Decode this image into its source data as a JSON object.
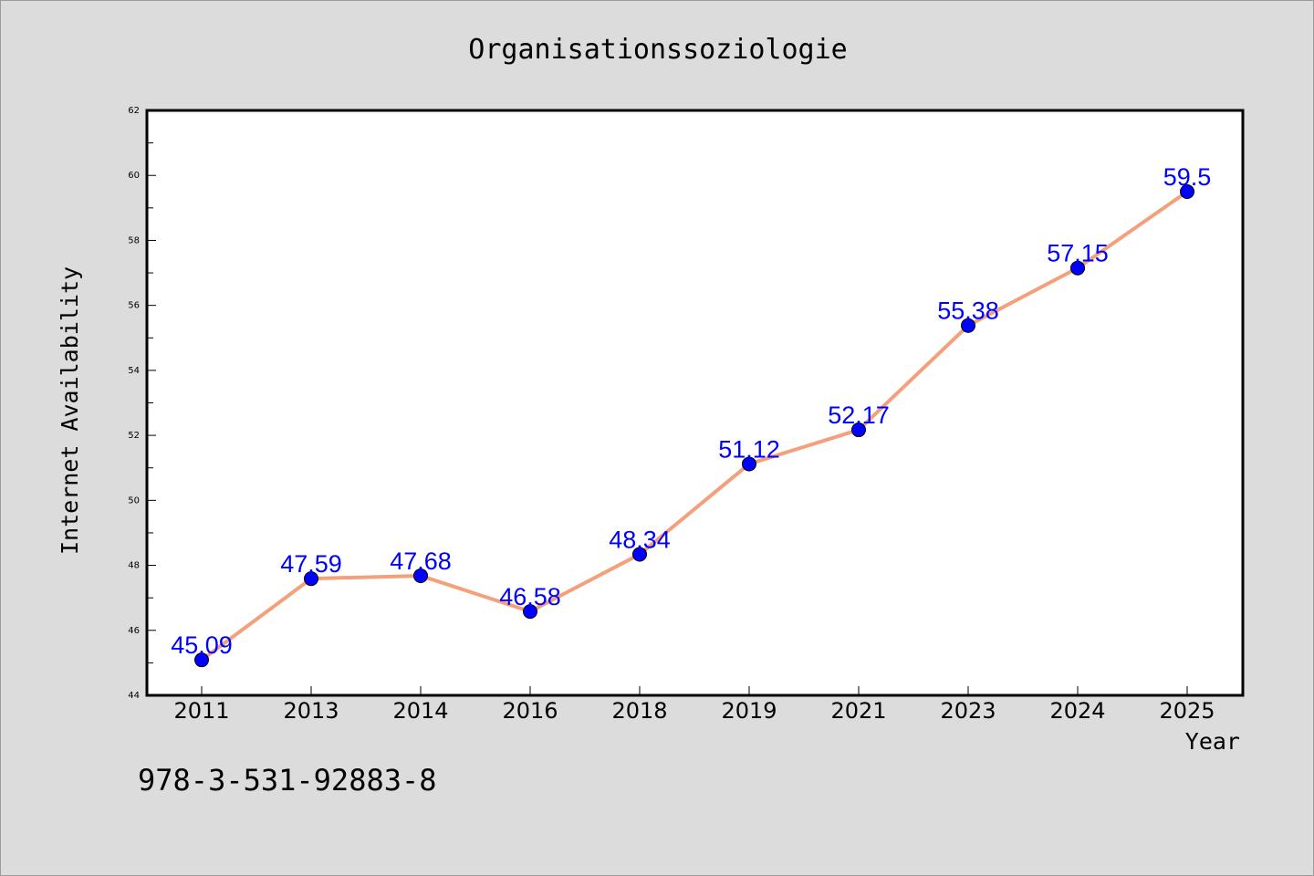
{
  "chart_data": {
    "type": "line",
    "title": "Organisationssoziologie",
    "xlabel": "Year",
    "ylabel": "Internet Availability",
    "categories": [
      "2011",
      "2013",
      "2014",
      "2016",
      "2018",
      "2019",
      "2021",
      "2023",
      "2024",
      "2025"
    ],
    "series": [
      {
        "values": [
          45.09,
          47.59,
          47.68,
          46.58,
          48.34,
          51.12,
          52.17,
          55.38,
          57.15,
          59.5
        ],
        "labels": [
          "45.09",
          "47.59",
          "47.68",
          "46.58",
          "48.34",
          "51.12",
          "52.17",
          "55.38",
          "57.15",
          "59.5"
        ],
        "line_color": "#f4a07a",
        "marker_color": "#0000ff"
      }
    ],
    "ylim": [
      44,
      62
    ],
    "yticks": [
      "44",
      "46",
      "48",
      "50",
      "52",
      "54",
      "56",
      "58",
      "60",
      "62"
    ],
    "grid": false,
    "legend": "none"
  },
  "footer_text": "978-3-531-92883-8",
  "colors": {
    "background": "#dcdcdc",
    "plot_area": "#ffffff",
    "line": "#f4a07a",
    "marker": "#0000ff",
    "data_label": "#0000ff"
  }
}
